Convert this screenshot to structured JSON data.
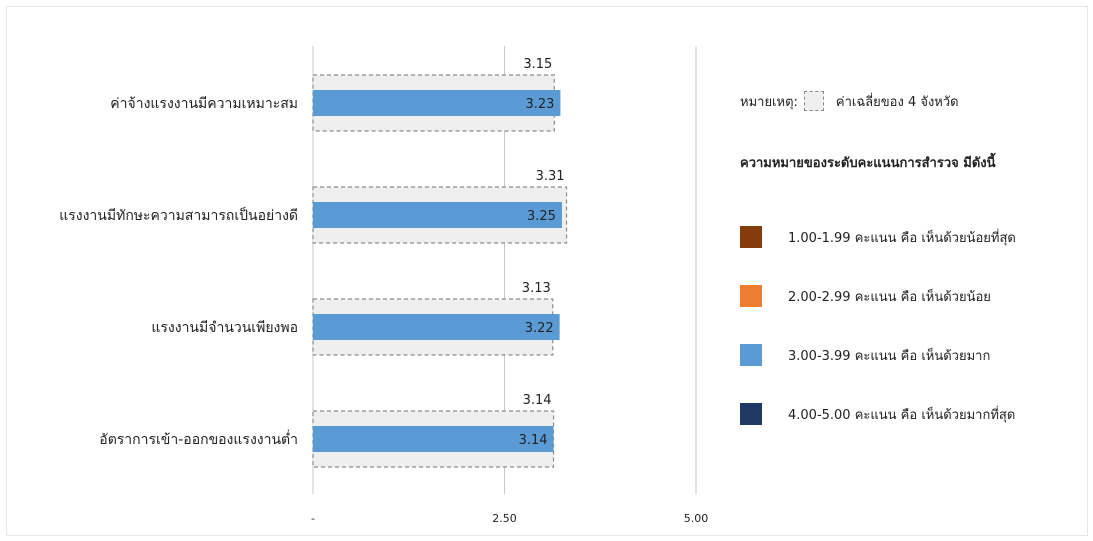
{
  "chart_data": {
    "type": "bar",
    "orientation": "horizontal",
    "categories": [
      "ค่าจ้างแรงงานมีความเหมาะสม",
      "แรงงานมีทักษะความสามารถเป็นอย่างดี",
      "แรงงานมีจำนวนเพียงพอ",
      "อัตราการเข้า-ออกของแรงงานต่ำ"
    ],
    "values": [
      3.23,
      3.25,
      3.22,
      3.14
    ],
    "value_labels": [
      "3.23",
      "3.25",
      "3.22",
      "3.14"
    ],
    "reference_values": [
      3.15,
      3.31,
      3.13,
      3.14
    ],
    "reference_labels": [
      "3.15",
      "3.31",
      "3.13",
      "3.14"
    ],
    "xlim": [
      0,
      5
    ],
    "xticks": [
      0,
      2.5,
      5
    ],
    "xtick_labels": [
      "-",
      "2.50",
      "5.00"
    ],
    "grid": true,
    "legend_position": "right",
    "bar_color": "#5b9bd5"
  },
  "legend": {
    "note_label": "หมายเหตุ:",
    "note_text": "ค่าเฉลี่ยของ 4 จังหวัด",
    "title": "ความหมายของระดับคะแนนการสำรวจ มีดังนี้",
    "items": [
      {
        "label": "1.00-1.99 คะแนน  คือ เห็นด้วยน้อยที่สุด",
        "color": "#843c0c"
      },
      {
        "label": "2.00-2.99  คะแนน  คือ เห็นด้วยน้อย",
        "color": "#ed7d31"
      },
      {
        "label": "3.00-3.99 คะแนน  คือ เห็นด้วยมาก",
        "color": "#5b9bd5"
      },
      {
        "label": "4.00-5.00 คะแนน  คือ เห็นด้วยมากที่สุด",
        "color": "#1f3864"
      }
    ]
  }
}
